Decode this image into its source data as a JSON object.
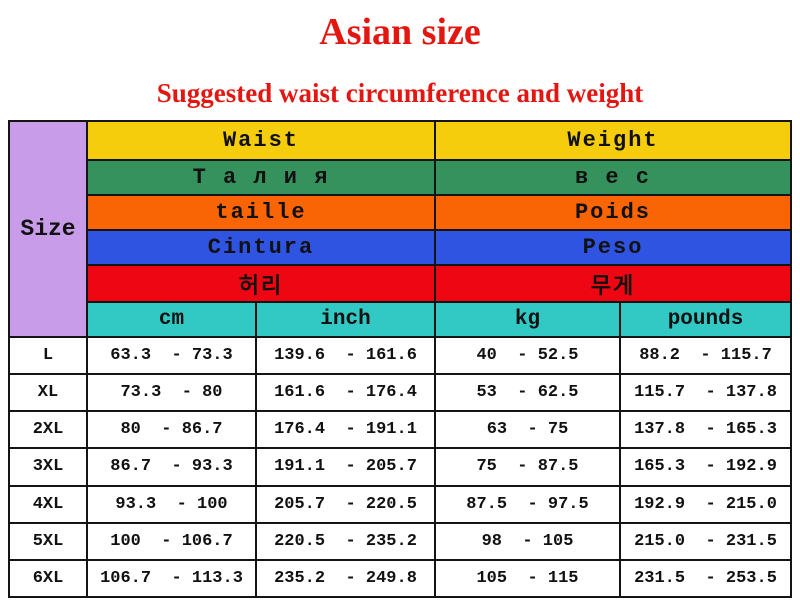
{
  "title": "Asian size",
  "subtitle": "Suggested waist circumference and weight",
  "colors": {
    "title_red": "#e31712",
    "size_cell_purple": "#c99cea",
    "border_black": "#141414",
    "row_english_yellow": "#f5cd0d",
    "row_russian_green": "#35925c",
    "row_french_orange": "#f96405",
    "row_spanish_blue": "#3054e2",
    "row_korean_red": "#ee0712",
    "row_units_cyan": "#32c8c4"
  },
  "chart_data": {
    "type": "table",
    "title": "Asian size",
    "subtitle": "Suggested waist circumference and weight",
    "size_label": "Size",
    "header_rows": [
      {
        "language": "english",
        "waist": "Waist",
        "weight": "Weight",
        "color": "#f5cd0d"
      },
      {
        "language": "russian",
        "waist": "Т а л и я",
        "weight": "в е с",
        "color": "#35925c"
      },
      {
        "language": "french",
        "waist": "taille",
        "weight": "Poids",
        "color": "#f96405"
      },
      {
        "language": "spanish",
        "waist": "Cintura",
        "weight": "Peso",
        "color": "#3054e2"
      },
      {
        "language": "korean",
        "waist": "허리",
        "weight": "무게",
        "color": "#ee0712"
      }
    ],
    "unit_row": {
      "color": "#32c8c4",
      "labels": [
        "cm",
        "inch",
        "kg",
        "pounds"
      ]
    },
    "rows": [
      {
        "size": "L",
        "cm": "63.3  - 73.3",
        "inch": "139.6  - 161.6",
        "kg": "40  - 52.5",
        "pounds": "88.2  - 115.7"
      },
      {
        "size": "XL",
        "cm": "73.3  - 80",
        "inch": "161.6  - 176.4",
        "kg": "53  - 62.5",
        "pounds": "115.7  - 137.8"
      },
      {
        "size": "2XL",
        "cm": "80  - 86.7",
        "inch": "176.4  - 191.1",
        "kg": "63  - 75",
        "pounds": "137.8  - 165.3"
      },
      {
        "size": "3XL",
        "cm": "86.7  - 93.3",
        "inch": "191.1  - 205.7",
        "kg": "75  - 87.5",
        "pounds": "165.3  - 192.9"
      },
      {
        "size": "4XL",
        "cm": "93.3  - 100",
        "inch": "205.7  - 220.5",
        "kg": "87.5  - 97.5",
        "pounds": "192.9  - 215.0"
      },
      {
        "size": "5XL",
        "cm": "100  - 106.7",
        "inch": "220.5  - 235.2",
        "kg": "98  - 105",
        "pounds": "215.0  - 231.5"
      },
      {
        "size": "6XL",
        "cm": "106.7  - 113.3",
        "inch": "235.2  - 249.8",
        "kg": "105  - 115",
        "pounds": "231.5  - 253.5"
      }
    ]
  }
}
